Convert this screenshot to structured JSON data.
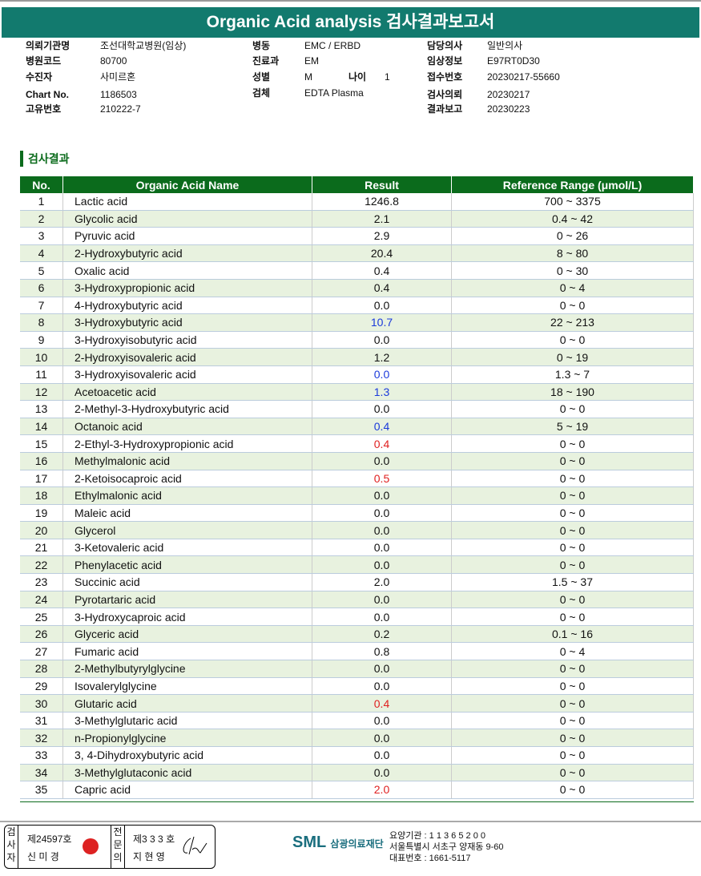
{
  "title": "Organic Acid analysis 검사결과보고서",
  "info": [
    {
      "label": "의뢰기관명",
      "value": "조선대학교병원(임상)"
    },
    {
      "label": "병원코드",
      "value": "80700"
    },
    {
      "label": "수진자",
      "value": "사미르혼"
    },
    {
      "label": "Chart No.",
      "value": "1186503"
    },
    {
      "label": "고유번호",
      "value": "210222-7"
    },
    {
      "label": "병동",
      "value": "EMC / ERBD"
    },
    {
      "label": "진료과",
      "value": "EM"
    },
    {
      "label": "성별",
      "value": "M"
    },
    {
      "label": "나이",
      "value": "1"
    },
    {
      "label": "검체",
      "value": "EDTA Plasma"
    },
    {
      "label": "담당의사",
      "value": "일반의사"
    },
    {
      "label": "임상정보",
      "value": "E97RT0D30"
    },
    {
      "label": "접수번호",
      "value": "20230217-55660"
    },
    {
      "label": "검사의뢰",
      "value": "20230217"
    },
    {
      "label": "결과보고",
      "value": "20230223"
    }
  ],
  "section_title": "검사결과",
  "table": {
    "headers": [
      "No.",
      "Organic Acid Name",
      "Result",
      "Reference Range (μmol/L)"
    ],
    "rows": [
      [
        "1",
        "Lactic acid",
        "1246.8",
        "700 ~ 3375",
        "normal"
      ],
      [
        "2",
        "Glycolic acid",
        "2.1",
        "0.4 ~ 42",
        "normal"
      ],
      [
        "3",
        "Pyruvic acid",
        "2.9",
        "0 ~ 26",
        "normal"
      ],
      [
        "4",
        "2-Hydroxybutyric acid",
        "20.4",
        "8 ~ 80",
        "normal"
      ],
      [
        "5",
        "Oxalic acid",
        "0.4",
        "0 ~ 30",
        "normal"
      ],
      [
        "6",
        "3-Hydroxypropionic acid",
        "0.4",
        "0 ~ 4",
        "normal"
      ],
      [
        "7",
        "4-Hydroxybutyric acid",
        "0.0",
        "0 ~ 0",
        "normal"
      ],
      [
        "8",
        "3-Hydroxybutyric acid",
        "10.7",
        "22 ~ 213",
        "low"
      ],
      [
        "9",
        "3-Hydroxyisobutyric acid",
        "0.0",
        "0 ~ 0",
        "normal"
      ],
      [
        "10",
        "2-Hydroxyisovaleric acid",
        "1.2",
        "0 ~ 19",
        "normal"
      ],
      [
        "11",
        "3-Hydroxyisovaleric acid",
        "0.0",
        "1.3 ~ 7",
        "low"
      ],
      [
        "12",
        "Acetoacetic acid",
        "1.3",
        "18 ~ 190",
        "low"
      ],
      [
        "13",
        "2-Methyl-3-Hydroxybutyric acid",
        "0.0",
        "0 ~ 0",
        "normal"
      ],
      [
        "14",
        "Octanoic acid",
        "0.4",
        "5 ~ 19",
        "low"
      ],
      [
        "15",
        "2-Ethyl-3-Hydroxypropionic acid",
        "0.4",
        "0 ~ 0",
        "high"
      ],
      [
        "16",
        "Methylmalonic acid",
        "0.0",
        "0 ~ 0",
        "normal"
      ],
      [
        "17",
        "2-Ketoisocaproic acid",
        "0.5",
        "0 ~ 0",
        "high"
      ],
      [
        "18",
        "Ethylmalonic acid",
        "0.0",
        "0 ~ 0",
        "normal"
      ],
      [
        "19",
        "Maleic acid",
        "0.0",
        "0 ~ 0",
        "normal"
      ],
      [
        "20",
        "Glycerol",
        "0.0",
        "0 ~ 0",
        "normal"
      ],
      [
        "21",
        "3-Ketovaleric acid",
        "0.0",
        "0 ~ 0",
        "normal"
      ],
      [
        "22",
        "Phenylacetic acid",
        "0.0",
        "0 ~ 0",
        "normal"
      ],
      [
        "23",
        "Succinic acid",
        "2.0",
        "1.5 ~ 37",
        "normal"
      ],
      [
        "24",
        "Pyrotartaric acid",
        "0.0",
        "0 ~ 0",
        "normal"
      ],
      [
        "25",
        "3-Hydroxycaproic acid",
        "0.0",
        "0 ~ 0",
        "normal"
      ],
      [
        "26",
        "Glyceric acid",
        "0.2",
        "0.1 ~ 16",
        "normal"
      ],
      [
        "27",
        "Fumaric acid",
        "0.8",
        "0 ~ 4",
        "normal"
      ],
      [
        "28",
        "2-Methylbutyrylglycine",
        "0.0",
        "0 ~ 0",
        "normal"
      ],
      [
        "29",
        "Isovalerylglycine",
        "0.0",
        "0 ~ 0",
        "normal"
      ],
      [
        "30",
        "Glutaric acid",
        "0.4",
        "0 ~ 0",
        "high"
      ],
      [
        "31",
        "3-Methylglutaric acid",
        "0.0",
        "0 ~ 0",
        "normal"
      ],
      [
        "32",
        "n-Propionylglycine",
        "0.0",
        "0 ~ 0",
        "normal"
      ],
      [
        "33",
        "3, 4-Dihydroxybutyric acid",
        "0.0",
        "0 ~ 0",
        "normal"
      ],
      [
        "34",
        "3-Methylglutaconic acid",
        "0.0",
        "0 ~ 0",
        "normal"
      ],
      [
        "35",
        "Capric acid",
        "2.0",
        "0 ~ 0",
        "high"
      ]
    ]
  },
  "colors": {
    "title_bg": "#127a6e",
    "header_bg": "#0b6b1c",
    "low": "#1a3adb",
    "high": "#e02020",
    "stripe": "#e8f2df"
  },
  "footer": {
    "examiner_label": "검사자",
    "examiner_no": "제24597호",
    "examiner_name": "신 미 경",
    "specialist_label": "전문의",
    "specialist_no": "제3 3 3 호",
    "specialist_name": "지 현 영",
    "logo": "SML",
    "org": "삼광의료재단",
    "addr": [
      "요양기관 : 1 1 3 6 5 2 0 0",
      "서울특별시 서초구 양재동 9-60",
      "대표번호 : 1661-5117"
    ]
  }
}
